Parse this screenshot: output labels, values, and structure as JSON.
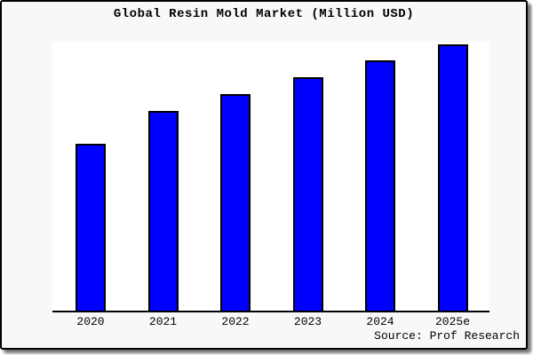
{
  "page": {
    "title": "Global Resin Mold Market (Million USD)",
    "source": "Source: Prof Research"
  },
  "chart_data": {
    "type": "bar",
    "title": "Global Resin Mold Market (Million USD)",
    "categories": [
      "2020",
      "2021",
      "2022",
      "2023",
      "2024",
      "2025e"
    ],
    "values": [
      62.7,
      75.0,
      81.3,
      87.7,
      94.0,
      100.0
    ],
    "unit": "relative height, % of 2025e bar (y-axis has no tick labels)",
    "xlabel": "",
    "ylabel": "",
    "ylim": [
      0,
      100
    ],
    "grid": false,
    "legend": "none",
    "bar_color": "#0000ff",
    "bar_border_color": "#000000",
    "plot_background": "#ffffff",
    "page_background": "#f8f8f8",
    "source": "Source: Prof Research"
  }
}
